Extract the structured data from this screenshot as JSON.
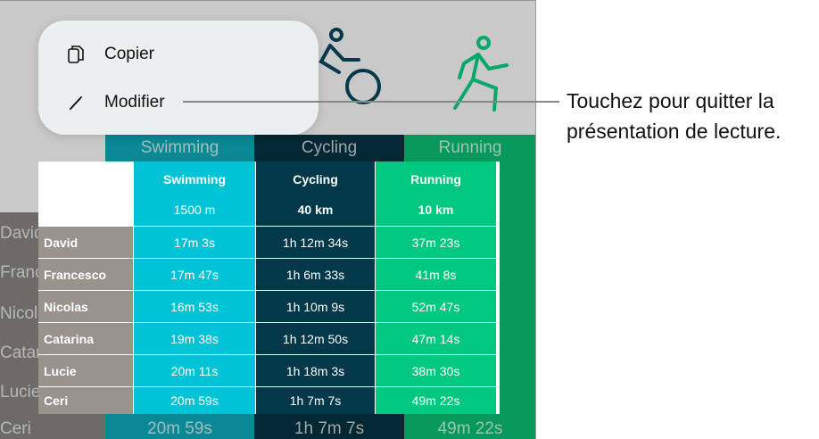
{
  "menu": {
    "items": [
      {
        "label": "Copier",
        "icon": "copy-icon"
      },
      {
        "label": "Modifier",
        "icon": "pencil-icon"
      }
    ]
  },
  "callout": "Touchez pour quitter la présentation de lecture.",
  "colors": {
    "swimming": "#00c4d6",
    "cycling": "#02394a",
    "running": "#00c97f",
    "names": "#9a928c"
  },
  "table": {
    "columns": [
      {
        "name": "Swimming",
        "distance": "1500 m"
      },
      {
        "name": "Cycling",
        "distance": "40 km"
      },
      {
        "name": "Running",
        "distance": "10 km"
      }
    ],
    "rows": [
      {
        "name": "David",
        "times": [
          "17m 3s",
          "1h 12m 34s",
          "37m 23s"
        ]
      },
      {
        "name": "Francesco",
        "times": [
          "17m 47s",
          "1h 6m 33s",
          "41m 8s"
        ]
      },
      {
        "name": "Nicolas",
        "times": [
          "16m 53s",
          "1h 10m 9s",
          "52m 47s"
        ]
      },
      {
        "name": "Catarina",
        "times": [
          "19m 38s",
          "1h 12m 50s",
          "47m 14s"
        ]
      },
      {
        "name": "Lucie",
        "times": [
          "20m 11s",
          "1h 18m 3s",
          "38m 30s"
        ]
      },
      {
        "name": "Ceri",
        "times": [
          "20m 59s",
          "1h 7m 7s",
          "49m 22s"
        ]
      }
    ]
  }
}
